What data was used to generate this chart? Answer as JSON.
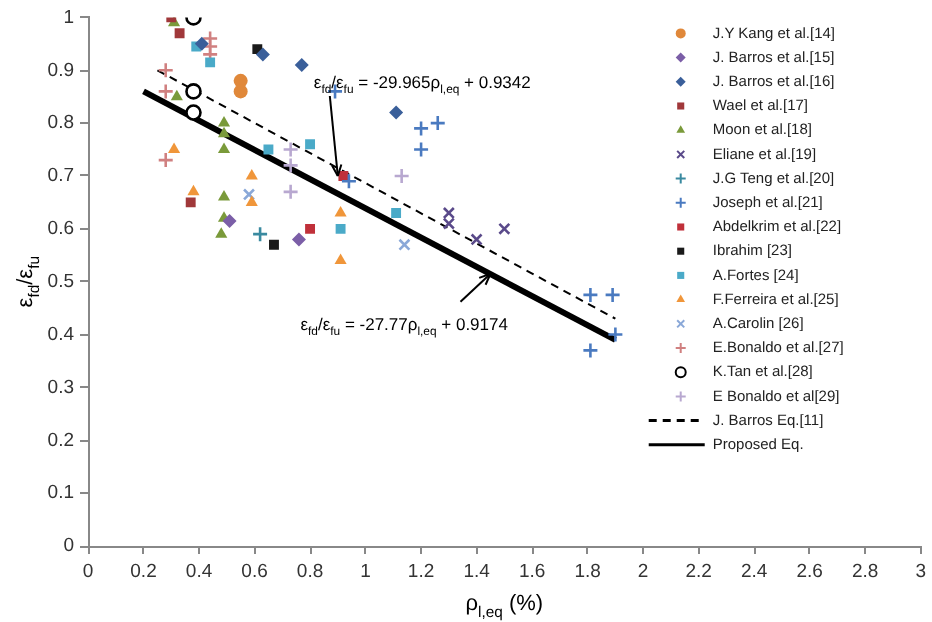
{
  "chart_data": {
    "type": "scatter",
    "xlabel": "ρ$_{l,eq}$ (%)",
    "ylabel": "ε$_{fd}$/ε$_{fu}$",
    "xlim": [
      0,
      3
    ],
    "xticks": [
      0,
      0.2,
      0.4,
      0.6,
      0.8,
      1,
      1.2,
      1.4,
      1.6,
      1.8,
      2,
      2.2,
      2.4,
      2.6,
      2.8,
      3
    ],
    "ylim": [
      0,
      1
    ],
    "yticks": [
      0,
      0.1,
      0.2,
      0.3,
      0.4,
      0.5,
      0.6,
      0.7,
      0.8,
      0.9,
      1
    ],
    "grid": false,
    "legend": "top right",
    "annotations": [
      {
        "text": "ε$_{fd}$/ε$_{fu}$ = -29.965ρ$_{l,eq}$ + 0.9342",
        "x": 0.9,
        "y": 0.7
      },
      {
        "text": "ε$_{fd}$/ε$_{fu}$ = -27.77ρ$_{l,eq}$ + 0.9174",
        "x": 1.45,
        "y": 0.515
      }
    ],
    "series": [
      {
        "name": "J.Y Kang et al.[14]",
        "color": "#e0883a",
        "marker": "circle",
        "x": [
          0.55,
          0.55
        ],
        "values": [
          0.88,
          0.86
        ]
      },
      {
        "name": "J. Barros et al.[15]",
        "color": "#7b5ea7",
        "marker": "diamond",
        "x": [
          0.51,
          0.76
        ],
        "values": [
          0.615,
          0.58
        ]
      },
      {
        "name": "J. Barros et al.[16]",
        "color": "#3a5f9a",
        "marker": "diamond",
        "x": [
          0.41,
          0.63,
          0.77,
          1.11
        ],
        "values": [
          0.95,
          0.93,
          0.91,
          0.82
        ]
      },
      {
        "name": "Wael et al.[17]",
        "color": "#a0383a",
        "marker": "square",
        "x": [
          0.3,
          0.33,
          0.37
        ],
        "values": [
          1,
          0.97,
          0.65
        ]
      },
      {
        "name": "Moon et al.[18]",
        "color": "#7a9a3a",
        "marker": "triangle",
        "x": [
          0.31,
          0.32,
          0.49,
          0.49,
          0.49,
          0.49,
          0.49,
          0.48
        ],
        "values": [
          0.99,
          0.85,
          0.8,
          0.78,
          0.75,
          0.66,
          0.62,
          0.59
        ]
      },
      {
        "name": "Eliane et al.[19]",
        "color": "#5a4a8a",
        "marker": "x",
        "x": [
          1.3,
          1.3,
          1.4,
          1.5
        ],
        "values": [
          0.63,
          0.61,
          0.58,
          0.6
        ]
      },
      {
        "name": "J.G Teng et al.[20]",
        "color": "#3a8aa0",
        "marker": "cross",
        "x": [
          0.62
        ],
        "values": [
          0.59
        ]
      },
      {
        "name": "Joseph et al.[21]",
        "color": "#4a7ac0",
        "marker": "cross",
        "x": [
          0.89,
          1.2,
          1.26,
          1.2,
          0.94,
          1.81,
          1.89,
          1.81,
          1.9
        ],
        "values": [
          0.86,
          0.79,
          0.8,
          0.75,
          0.69,
          0.475,
          0.475,
          0.37,
          0.4
        ]
      },
      {
        "name": "Abdelkrim et al.[22]",
        "color": "#c0303a",
        "marker": "square",
        "x": [
          0.92,
          0.8
        ],
        "values": [
          0.7,
          0.6
        ]
      },
      {
        "name": "Ibrahim [23]",
        "color": "#1a1a1a",
        "marker": "square",
        "x": [
          0.61,
          0.67
        ],
        "values": [
          0.94,
          0.57
        ]
      },
      {
        "name": "A.Fortes [24]",
        "color": "#4aaac8",
        "marker": "square",
        "x": [
          0.39,
          0.44,
          0.65,
          0.8,
          0.91,
          1.11
        ],
        "values": [
          0.945,
          0.915,
          0.75,
          0.76,
          0.6,
          0.63
        ]
      },
      {
        "name": "F.Ferreira et al.[25]",
        "color": "#f0963a",
        "marker": "triangle",
        "x": [
          0.31,
          0.38,
          0.59,
          0.59,
          0.91,
          0.91
        ],
        "values": [
          0.75,
          0.67,
          0.7,
          0.65,
          0.63,
          0.54
        ]
      },
      {
        "name": "A.Carolin [26]",
        "color": "#8aa8d8",
        "marker": "x",
        "x": [
          0.58,
          1.14
        ],
        "values": [
          0.665,
          0.57
        ]
      },
      {
        "name": "E.Bonaldo et al.[27]",
        "color": "#d08080",
        "marker": "cross",
        "x": [
          0.28,
          0.28,
          0.28,
          0.44,
          0.44,
          0.44
        ],
        "values": [
          0.9,
          0.86,
          0.73,
          0.96,
          0.945,
          0.93
        ]
      },
      {
        "name": "K.Tan et al.[28]",
        "color": "#000000",
        "marker": "open_circle",
        "x": [
          0.38,
          0.38,
          0.38
        ],
        "values": [
          1,
          0.86,
          0.82
        ]
      },
      {
        "name": "E Bonaldo et al[29]",
        "color": "#b8a8d0",
        "marker": "cross",
        "x": [
          0.73,
          0.73,
          0.73,
          1.13
        ],
        "values": [
          0.75,
          0.72,
          0.67,
          0.7
        ]
      },
      {
        "name": "J. Barros Eq.[11]",
        "type": "line",
        "color": "#000000",
        "line_style": "dashed",
        "marker": "none",
        "x": [
          0.25,
          1.9
        ],
        "values": [
          0.9,
          0.43
        ]
      },
      {
        "name": "Proposed Eq.",
        "type": "line",
        "color": "#000000",
        "line_style": "solid",
        "marker": "none",
        "x": [
          0.2,
          1.9
        ],
        "values": [
          0.86,
          0.39
        ]
      }
    ]
  }
}
